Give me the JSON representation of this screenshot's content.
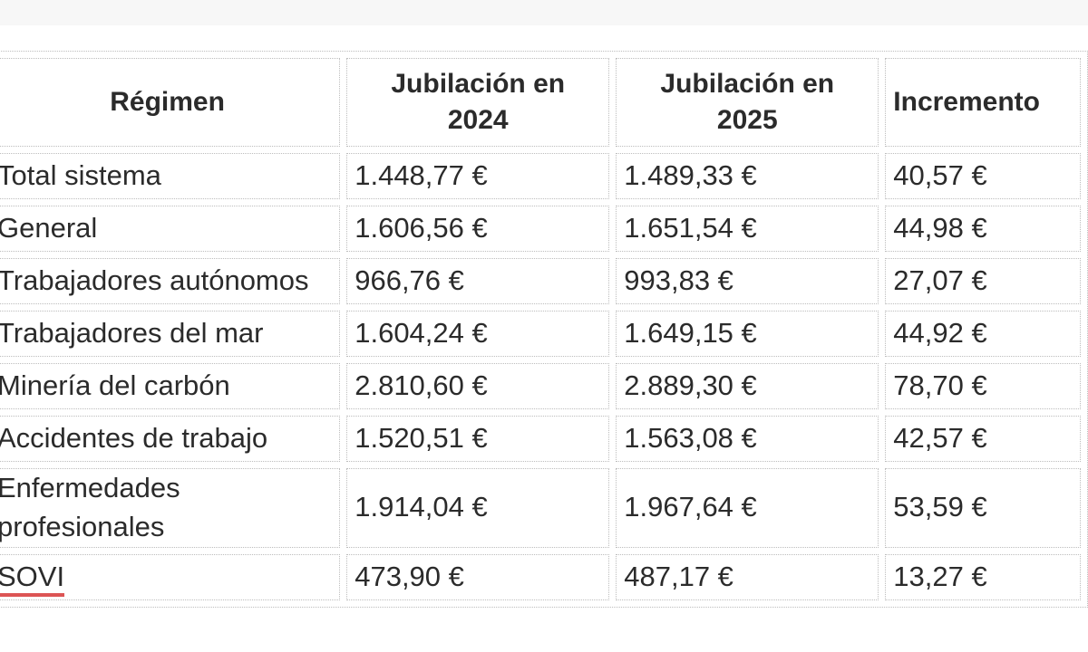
{
  "table": {
    "columns": [
      {
        "key": "regimen",
        "label": "Régimen"
      },
      {
        "key": "jub2024",
        "label": "Jubilación en 2024"
      },
      {
        "key": "jub2025",
        "label": "Jubilación en 2025"
      },
      {
        "key": "incremento",
        "label": "Incremento"
      }
    ],
    "rows": [
      {
        "regimen": "Total sistema",
        "jub2024": "1.448,77 €",
        "jub2025": "1.489,33 €",
        "incremento": "40,57 €",
        "link": false
      },
      {
        "regimen": "General",
        "jub2024": "1.606,56 €",
        "jub2025": "1.651,54 €",
        "incremento": "44,98 €",
        "link": false
      },
      {
        "regimen": "Trabajadores autónomos",
        "jub2024": "966,76 €",
        "jub2025": "993,83 €",
        "incremento": "27,07 €",
        "link": false
      },
      {
        "regimen": "Trabajadores del mar",
        "jub2024": "1.604,24 €",
        "jub2025": "1.649,15 €",
        "incremento": "44,92 €",
        "link": false
      },
      {
        "regimen": "Minería del carbón",
        "jub2024": "2.810,60 €",
        "jub2025": "2.889,30 €",
        "incremento": "78,70 €",
        "link": false
      },
      {
        "regimen": "Accidentes de trabajo",
        "jub2024": "1.520,51 €",
        "jub2025": "1.563,08 €",
        "incremento": "42,57 €",
        "link": false
      },
      {
        "regimen": "Enfermedades profesionales",
        "jub2024": "1.914,04 €",
        "jub2025": "1.967,64 €",
        "incremento": "53,59 €",
        "link": false
      },
      {
        "regimen": "SOVI",
        "jub2024": "473,90 €",
        "jub2025": "487,17 €",
        "incremento": "13,27 €",
        "link": true
      }
    ],
    "colors": {
      "text": "#2b2b2b",
      "border": "#bdbdbd",
      "link_underline": "#dc5454"
    }
  }
}
